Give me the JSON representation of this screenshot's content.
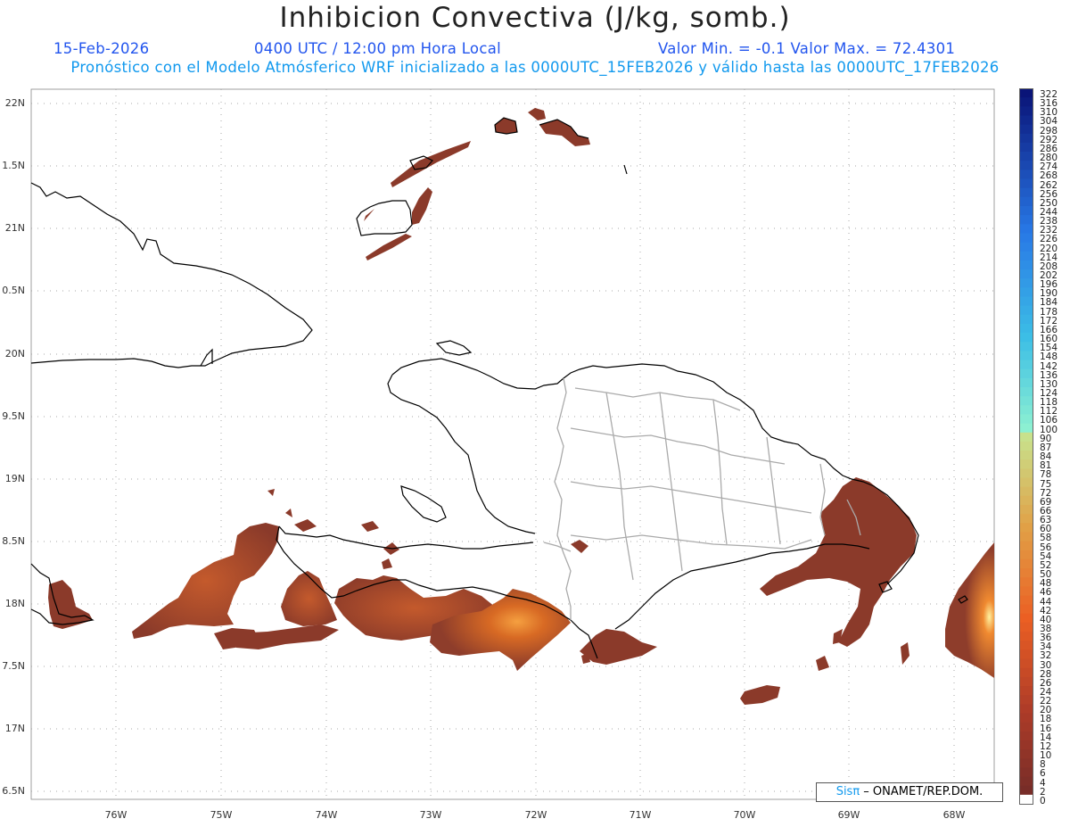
{
  "title": "Inhibicion Convectiva (J/kg, somb.)",
  "header": {
    "date": "15-Feb-2026",
    "time": "0400 UTC / 12:00 pm Hora Local",
    "minmax": "Valor Min. = -0.1  Valor Max. = 72.4301",
    "forecast": "Pronóstico con el Modelo Atmósferico WRF inicializado a las 0000UTC_15FEB2026 y válido hasta las  0000UTC_17FEB2026"
  },
  "axes": {
    "lat_labels": [
      "22N",
      "1.5N",
      "21N",
      "0.5N",
      "20N",
      "9.5N",
      "19N",
      "8.5N",
      "18N",
      "7.5N",
      "17N",
      "6.5N"
    ],
    "lon_labels": [
      "76W",
      "75W",
      "74W",
      "73W",
      "72W",
      "71W",
      "70W",
      "69W",
      "68W"
    ]
  },
  "colorbar": {
    "labels": [
      "322",
      "316",
      "310",
      "304",
      "298",
      "292",
      "286",
      "280",
      "274",
      "268",
      "262",
      "256",
      "250",
      "244",
      "238",
      "232",
      "226",
      "220",
      "214",
      "208",
      "202",
      "196",
      "190",
      "184",
      "178",
      "172",
      "166",
      "160",
      "154",
      "148",
      "142",
      "136",
      "130",
      "124",
      "118",
      "112",
      "106",
      "100",
      "90",
      "87",
      "84",
      "81",
      "78",
      "75",
      "72",
      "69",
      "66",
      "63",
      "60",
      "58",
      "56",
      "54",
      "52",
      "50",
      "48",
      "46",
      "44",
      "42",
      "40",
      "38",
      "36",
      "34",
      "32",
      "30",
      "28",
      "26",
      "24",
      "22",
      "20",
      "18",
      "16",
      "14",
      "12",
      "10",
      "8",
      "6",
      "4",
      "2",
      "0"
    ]
  },
  "credit": {
    "brand": "Sisπ",
    "text": " – ONAMET/REP.DOM."
  },
  "colors": {
    "shading": "#8b3a2a",
    "hot": "#e86a1a",
    "coast": "#000000",
    "borders": "#aaaaaa",
    "accent": "#2255ee"
  }
}
